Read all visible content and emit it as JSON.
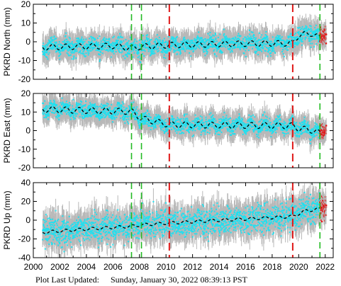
{
  "footer": {
    "label": "Plot Last Updated:",
    "value": "Sunday, January 30, 2022 08:39:13 PST"
  },
  "style": {
    "daily_color": "#20e0f0",
    "error_bar_color": "#b8b8b8",
    "recent_color": "#e01818",
    "model_color": "#000000",
    "offset_color_equipment": "#22bb22",
    "offset_color_earthquake": "#e01818"
  },
  "chart_data": [
    {
      "type": "scatter",
      "ylabel": "PKRD North (mm)",
      "ylim": [
        -20,
        20
      ],
      "yticks": [
        -20,
        -10,
        0,
        10,
        20
      ],
      "xlim": [
        2000,
        2022.6
      ],
      "xticks": [
        2000,
        2002,
        2004,
        2006,
        2008,
        2010,
        2012,
        2014,
        2016,
        2018,
        2020,
        2022
      ],
      "show_x_tick_labels": false,
      "data_start": 2000.7,
      "data_end": 2021.6,
      "recent_start": 2021.6,
      "recent_end": 2022.08,
      "offsets_equipment": [
        2007.4,
        2008.15,
        2021.6
      ],
      "offsets_earthquake": [
        2010.25,
        2019.55
      ],
      "model": {
        "x": [
          2000.7,
          2003,
          2006,
          2007.4,
          2008.15,
          2010.25,
          2013,
          2016,
          2019.55,
          2020,
          2021,
          2021.6
        ],
        "y": [
          -3,
          -2.6,
          -2.2,
          -3.4,
          -2.6,
          -1.8,
          -1.4,
          -1.0,
          -0.8,
          3.6,
          4.4,
          2.0
        ],
        "annual_amplitude": 1.5
      },
      "scatter_sigma": 2.2,
      "error_bar_half_width": 5
    },
    {
      "type": "scatter",
      "ylabel": "PKRD East (mm)",
      "ylim": [
        -20,
        20
      ],
      "yticks": [
        -20,
        -10,
        0,
        10,
        20
      ],
      "xlim": [
        2000,
        2022.6
      ],
      "xticks": [
        2000,
        2002,
        2004,
        2006,
        2008,
        2010,
        2012,
        2014,
        2016,
        2018,
        2020,
        2022
      ],
      "show_x_tick_labels": false,
      "data_start": 2000.7,
      "data_end": 2021.6,
      "recent_start": 2021.6,
      "recent_end": 2022.08,
      "offsets_equipment": [
        2007.4,
        2008.15,
        2021.6
      ],
      "offsets_earthquake": [
        2010.25,
        2019.55
      ],
      "model": {
        "x": [
          2000.7,
          2004,
          2007.4,
          2008.15,
          2010.25,
          2013,
          2016,
          2019.55,
          2020,
          2021,
          2021.6
        ],
        "y": [
          11.5,
          10.8,
          10.3,
          6.5,
          3.2,
          3.0,
          2.8,
          2.6,
          1.2,
          0.2,
          -1.5
        ],
        "annual_amplitude": 1.6
      },
      "scatter_sigma": 2.0,
      "error_bar_half_width": 5
    },
    {
      "type": "scatter",
      "ylabel": "PKRD Up (mm)",
      "ylim": [
        -40,
        40
      ],
      "yticks": [
        -40,
        -20,
        0,
        20,
        40
      ],
      "xlim": [
        2000,
        2022.6
      ],
      "xticks": [
        2000,
        2002,
        2004,
        2006,
        2008,
        2010,
        2012,
        2014,
        2016,
        2018,
        2020,
        2022
      ],
      "xtick_labels": [
        "2000",
        "2002",
        "2004",
        "2006",
        "2008",
        "2010",
        "2012",
        "2014",
        "2016",
        "2018",
        "2020",
        "2022"
      ],
      "show_x_tick_labels": true,
      "data_start": 2000.7,
      "data_end": 2021.6,
      "recent_start": 2021.6,
      "recent_end": 2022.08,
      "offsets_equipment": [
        2007.4,
        2008.15,
        2021.6
      ],
      "offsets_earthquake": [
        2010.25,
        2019.55
      ],
      "model": {
        "x": [
          2000.7,
          2004,
          2007.4,
          2008.15,
          2010.25,
          2014,
          2017,
          2019.55,
          2020.5,
          2021.6
        ],
        "y": [
          -13,
          -9.5,
          -6.5,
          -5,
          -3,
          0,
          2,
          4,
          10,
          12
        ],
        "annual_amplitude": 1.5
      },
      "scatter_sigma": 7.0,
      "error_bar_half_width": 12
    }
  ]
}
